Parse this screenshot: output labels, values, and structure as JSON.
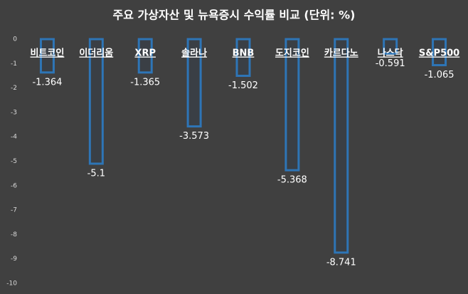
{
  "chart_data": {
    "type": "bar",
    "title": "주요 가상자산 및 뉴욕증시 수익률 비교 (단위: %)",
    "categories": [
      "비트코인",
      "이더리움",
      "XRP",
      "솔라나",
      "BNB",
      "도지코인",
      "카르다노",
      "나스닥",
      "S&P500"
    ],
    "values": [
      -1.364,
      -5.1,
      -1.365,
      -3.573,
      -1.502,
      -5.368,
      -8.741,
      -0.591,
      -1.065
    ],
    "color": "#2e75b6",
    "ylim": [
      0,
      -10
    ],
    "yticks": [
      0,
      -1,
      -2,
      -3,
      -4,
      -5,
      -6,
      -7,
      -8,
      -9,
      -10
    ],
    "grid": false
  }
}
